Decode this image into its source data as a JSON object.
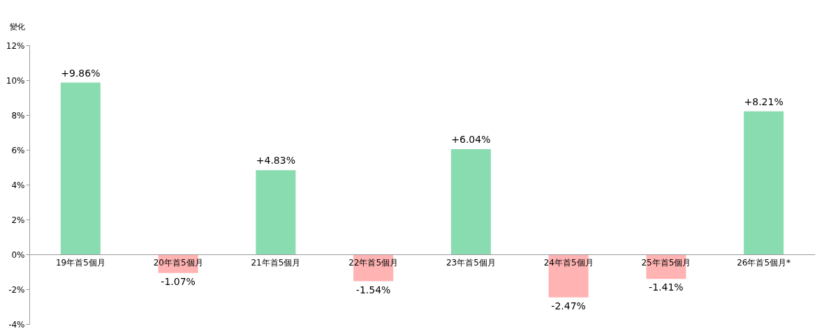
{
  "chart_data": {
    "type": "bar",
    "ylabel": "變化",
    "categories": [
      "19年首5個月",
      "20年首5個月",
      "21年首5個月",
      "22年首5個月",
      "23年首5個月",
      "24年首5個月",
      "25年首5個月",
      "26年首5個月*"
    ],
    "values": [
      9.86,
      -1.07,
      4.83,
      -1.54,
      6.04,
      -2.47,
      -1.41,
      8.21
    ],
    "colors": [
      "#88dcb0",
      "#ffb3b3",
      "#88dcb0",
      "#ffb3b3",
      "#88dcb0",
      "#ffb3b3",
      "#ffb3b3",
      "#88dcb0"
    ],
    "value_labels": [
      "+9.86%",
      "-1.07%",
      "+4.83%",
      "-1.54%",
      "+6.04%",
      "-2.47%",
      "-1.41%",
      "+8.21%"
    ],
    "ylim": [
      -4,
      12
    ],
    "yticks": [
      {
        "value": -4,
        "label": "-4%"
      },
      {
        "value": -2,
        "label": "-2%"
      },
      {
        "value": 0,
        "label": "0%"
      },
      {
        "value": 2,
        "label": "2%"
      },
      {
        "value": 4,
        "label": "4%"
      },
      {
        "value": 6,
        "label": "6%"
      },
      {
        "value": 8,
        "label": "8%"
      },
      {
        "value": 10,
        "label": "10%"
      },
      {
        "value": 12,
        "label": "12%"
      }
    ],
    "grid": false
  }
}
